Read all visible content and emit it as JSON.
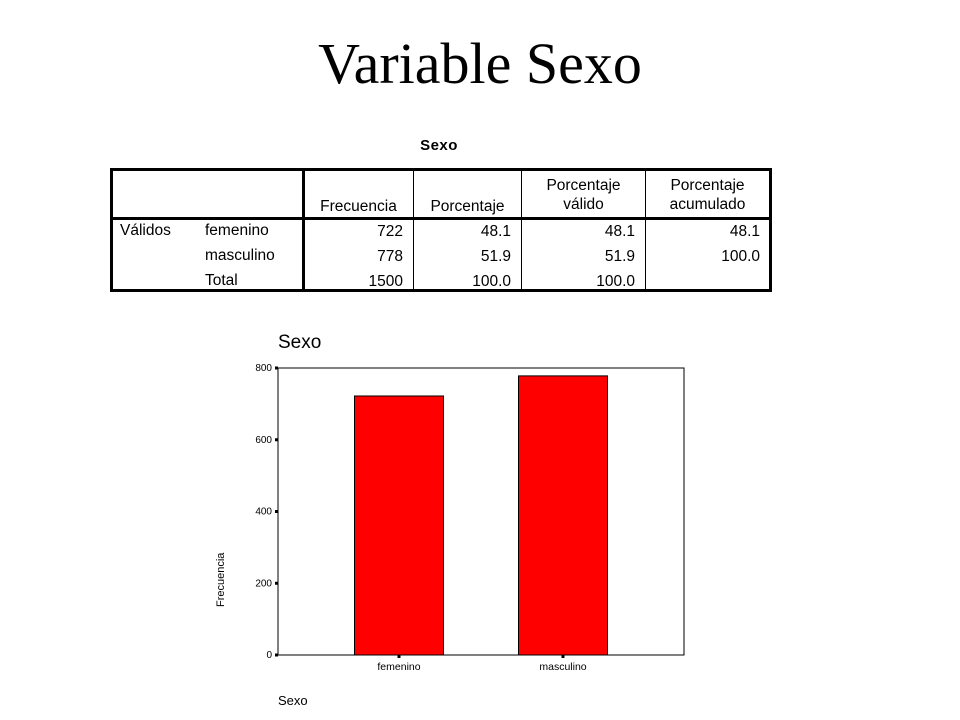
{
  "slide": {
    "title": "Variable Sexo"
  },
  "table": {
    "caption": "Sexo",
    "headers": [
      {
        "line1": "Frecuencia",
        "line2": ""
      },
      {
        "line1": "Porcentaje",
        "line2": ""
      },
      {
        "line1": "Porcentaje",
        "line2": "válido"
      },
      {
        "line1": "Porcentaje",
        "line2": "acumulado"
      }
    ],
    "group_label": "Válidos",
    "rows": [
      {
        "label": "femenino",
        "values": [
          "722",
          "48.1",
          "48.1",
          "48.1"
        ]
      },
      {
        "label": "masculino",
        "values": [
          "778",
          "51.9",
          "51.9",
          "100.0"
        ]
      },
      {
        "label": "Total",
        "values": [
          "1500",
          "100.0",
          "100.0",
          ""
        ]
      }
    ]
  },
  "chart_data": {
    "type": "bar",
    "title": "Sexo",
    "xlabel": "Sexo",
    "ylabel": "Frecuencia",
    "categories": [
      "femenino",
      "masculino"
    ],
    "values": [
      722,
      778
    ],
    "ylim": [
      0,
      800
    ],
    "yticks": [
      0,
      200,
      400,
      600,
      800
    ],
    "bar_color": "#ff0000",
    "grid": false
  }
}
